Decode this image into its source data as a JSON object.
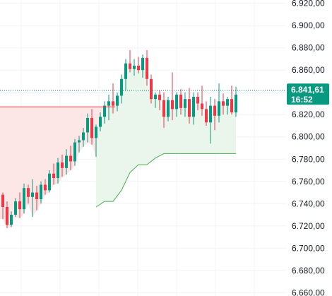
{
  "chart_data": {
    "type": "candlestick",
    "y_ticks": [
      "6.920,00",
      "6.900,00",
      "6.880,00",
      "6.860,00",
      "6.840,00",
      "6.820,00",
      "6.800,00",
      "6.780,00",
      "6.760,00",
      "6.740,00",
      "6.720,00",
      "6.700,00",
      "6.680,00",
      "6.660,00"
    ],
    "y_tick_values": [
      6920,
      6900,
      6880,
      6860,
      6840,
      6820,
      6800,
      6780,
      6760,
      6740,
      6720,
      6700,
      6680,
      6660
    ],
    "ylim": [
      6657,
      6923
    ],
    "grid": true,
    "current_price": {
      "value": 6841.61,
      "label": "6.841,61",
      "timer": "16:52"
    },
    "colors": {
      "up": "#089981",
      "down": "#f23645",
      "price_tag": "#089981",
      "resistance": "#f23645",
      "trail": "#4caf50",
      "red_fill": "#fde2e2",
      "green_fill": "#e8f5e9"
    },
    "candles": [
      [
        6748,
        6750,
        6726,
        6737
      ],
      [
        6737,
        6742,
        6718,
        6721
      ],
      [
        6721,
        6733,
        6719,
        6730
      ],
      [
        6730,
        6745,
        6728,
        6742
      ],
      [
        6742,
        6750,
        6727,
        6735
      ],
      [
        6735,
        6758,
        6731,
        6754
      ],
      [
        6754,
        6757,
        6740,
        6746
      ],
      [
        6746,
        6762,
        6728,
        6750
      ],
      [
        6750,
        6756,
        6734,
        6744
      ],
      [
        6744,
        6760,
        6740,
        6757
      ],
      [
        6757,
        6762,
        6748,
        6752
      ],
      [
        6752,
        6770,
        6750,
        6767
      ],
      [
        6767,
        6776,
        6757,
        6763
      ],
      [
        6763,
        6781,
        6758,
        6777
      ],
      [
        6777,
        6784,
        6764,
        6772
      ],
      [
        6772,
        6789,
        6766,
        6783
      ],
      [
        6783,
        6792,
        6770,
        6778
      ],
      [
        6778,
        6798,
        6774,
        6795
      ],
      [
        6795,
        6801,
        6786,
        6797
      ],
      [
        6797,
        6808,
        6791,
        6804
      ],
      [
        6804,
        6821,
        6795,
        6817
      ],
      [
        6817,
        6825,
        6793,
        6799
      ],
      [
        6799,
        6811,
        6782,
        6809
      ],
      [
        6809,
        6822,
        6805,
        6818
      ],
      [
        6818,
        6832,
        6812,
        6828
      ],
      [
        6828,
        6838,
        6815,
        6832
      ],
      [
        6832,
        6848,
        6821,
        6828
      ],
      [
        6828,
        6840,
        6823,
        6837
      ],
      [
        6837,
        6856,
        6830,
        6852
      ],
      [
        6852,
        6870,
        6842,
        6866
      ],
      [
        6866,
        6878,
        6858,
        6861
      ],
      [
        6861,
        6870,
        6855,
        6864
      ],
      [
        6864,
        6872,
        6857,
        6860
      ],
      [
        6860,
        6874,
        6853,
        6871
      ],
      [
        6871,
        6878,
        6846,
        6852
      ],
      [
        6852,
        6856,
        6830,
        6834
      ],
      [
        6834,
        6840,
        6826,
        6838
      ],
      [
        6838,
        6842,
        6824,
        6833
      ],
      [
        6833,
        6840,
        6808,
        6818
      ],
      [
        6818,
        6836,
        6814,
        6833
      ],
      [
        6833,
        6858,
        6815,
        6825
      ],
      [
        6825,
        6840,
        6818,
        6838
      ],
      [
        6838,
        6843,
        6820,
        6826
      ],
      [
        6826,
        6840,
        6818,
        6834
      ],
      [
        6834,
        6844,
        6812,
        6818
      ],
      [
        6818,
        6840,
        6811,
        6836
      ],
      [
        6836,
        6840,
        6824,
        6830
      ],
      [
        6830,
        6846,
        6819,
        6825
      ],
      [
        6825,
        6832,
        6810,
        6813
      ],
      [
        6813,
        6836,
        6794,
        6828
      ],
      [
        6828,
        6834,
        6806,
        6819
      ],
      [
        6819,
        6848,
        6813,
        6832
      ],
      [
        6832,
        6839,
        6820,
        6828
      ],
      [
        6828,
        6836,
        6820,
        6834
      ],
      [
        6834,
        6846,
        6820,
        6822
      ],
      [
        6822,
        6845,
        6818,
        6838
      ]
    ],
    "resistance": {
      "level": 6827,
      "from": 0,
      "to": 26
    },
    "trail_line": [
      [
        22,
        6737
      ],
      [
        24,
        6742
      ],
      [
        26,
        6742
      ],
      [
        28,
        6752
      ],
      [
        30,
        6768
      ],
      [
        32,
        6775
      ],
      [
        34,
        6775
      ],
      [
        36,
        6781
      ],
      [
        38,
        6785
      ],
      [
        55,
        6785
      ]
    ]
  }
}
